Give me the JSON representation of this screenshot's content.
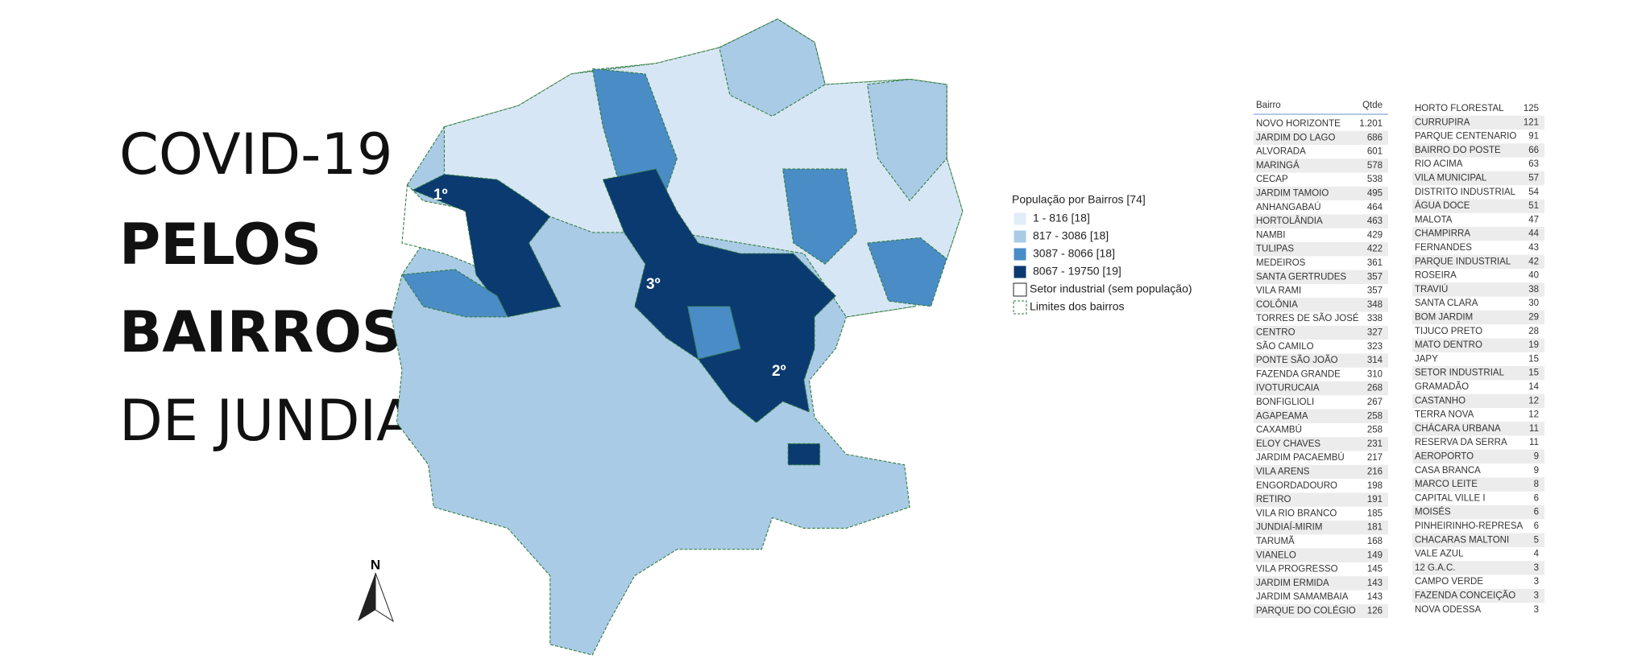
{
  "header": {
    "title_lines": [
      "COVID-19",
      "PELOS",
      "BAIRROS",
      "DE JUNDIAÍ"
    ]
  },
  "map": {
    "rank_labels": [
      "1º",
      "2º",
      "3º"
    ],
    "north": "N"
  },
  "legend": {
    "title": "População por Bairros [74]",
    "items": [
      {
        "label": "1 - 816  [18]",
        "color": "#e1edf8"
      },
      {
        "label": "817 - 3086  [18]",
        "color": "#a9cbe6"
      },
      {
        "label": "3087 - 8066  [18]",
        "color": "#4a8cc6"
      },
      {
        "label": "8067 - 19750  [19]",
        "color": "#0b3a70"
      }
    ],
    "industrial": "Setor industrial (sem população)",
    "limits": "Limites dos bairros"
  },
  "table": {
    "columns": [
      "Bairro",
      "Qtde"
    ],
    "rows": [
      [
        "NOVO HORIZONTE",
        "1.201"
      ],
      [
        "JARDIM DO LAGO",
        686
      ],
      [
        "ALVORADA",
        601
      ],
      [
        "MARINGÁ",
        578
      ],
      [
        "CECAP",
        538
      ],
      [
        "JARDIM TAMOIO",
        495
      ],
      [
        "ANHANGABAÚ",
        464
      ],
      [
        "HORTOLÂNDIA",
        463
      ],
      [
        "NAMBI",
        429
      ],
      [
        "TULIPAS",
        422
      ],
      [
        "MEDEIROS",
        361
      ],
      [
        "SANTA GERTRUDES",
        357
      ],
      [
        "VILA RAMI",
        357
      ],
      [
        "COLÔNIA",
        348
      ],
      [
        "TORRES DE SÃO JOSÉ",
        338
      ],
      [
        "CENTRO",
        327
      ],
      [
        "SÃO CAMILO",
        323
      ],
      [
        "PONTE SÃO JOÃO",
        314
      ],
      [
        "FAZENDA GRANDE",
        310
      ],
      [
        "IVOTURUCAIA",
        268
      ],
      [
        "BONFIGLIOLI",
        267
      ],
      [
        "AGAPEAMA",
        258
      ],
      [
        "CAXAMBÚ",
        258
      ],
      [
        "ELOY CHAVES",
        231
      ],
      [
        "JARDIM PACAEMBÚ",
        217
      ],
      [
        "VILA ARENS",
        216
      ],
      [
        "ENGORDADOURO",
        198
      ],
      [
        "RETIRO",
        191
      ],
      [
        "VILA RIO BRANCO",
        185
      ],
      [
        "JUNDIAÍ-MIRIM",
        181
      ],
      [
        "TARUMÃ",
        168
      ],
      [
        "VIANELO",
        149
      ],
      [
        "VILA PROGRESSO",
        145
      ],
      [
        "JARDIM ERMIDA",
        143
      ],
      [
        "JARDIM SAMAMBAIA",
        143
      ],
      [
        "PARQUE DO COLÉGIO",
        126
      ]
    ],
    "rows_right": [
      [
        "HORTO FLORESTAL",
        125
      ],
      [
        "CURRUPIRA",
        121
      ],
      [
        "PARQUE CENTENARIO",
        91
      ],
      [
        "BAIRRO DO POSTE",
        66
      ],
      [
        "RIO ACIMA",
        63
      ],
      [
        "VILA MUNICIPAL",
        57
      ],
      [
        "DISTRITO INDUSTRIAL",
        54
      ],
      [
        "ÁGUA DOCE",
        51
      ],
      [
        "MALOTA",
        47
      ],
      [
        "CHAMPIRRA",
        44
      ],
      [
        "FERNANDES",
        43
      ],
      [
        "PARQUE INDUSTRIAL",
        42
      ],
      [
        "ROSEIRA",
        40
      ],
      [
        "TRAVIÚ",
        38
      ],
      [
        "SANTA CLARA",
        30
      ],
      [
        "BOM JARDIM",
        29
      ],
      [
        "TIJUCO PRETO",
        28
      ],
      [
        "MATO DENTRO",
        19
      ],
      [
        "JAPY",
        15
      ],
      [
        "SETOR INDUSTRIAL",
        15
      ],
      [
        "GRAMADÃO",
        14
      ],
      [
        "CASTANHO",
        12
      ],
      [
        "TERRA NOVA",
        12
      ],
      [
        "CHÁCARA URBANA",
        11
      ],
      [
        "RESERVA DA SERRA",
        11
      ],
      [
        "AEROPORTO",
        9
      ],
      [
        "CASA BRANCA",
        9
      ],
      [
        "MARCO LEITE",
        8
      ],
      [
        "CAPITAL VILLE I",
        6
      ],
      [
        "MOISÉS",
        6
      ],
      [
        "PINHEIRINHO-REPRESA",
        6
      ],
      [
        "CHACARAS MALTONI",
        5
      ],
      [
        "VALE AZUL",
        4
      ],
      [
        "12 G.A.C.",
        3
      ],
      [
        "CAMPO VERDE",
        3
      ],
      [
        "FAZENDA CONCEIÇÃO",
        3
      ],
      [
        "NOVA ODESSA",
        3
      ]
    ]
  }
}
